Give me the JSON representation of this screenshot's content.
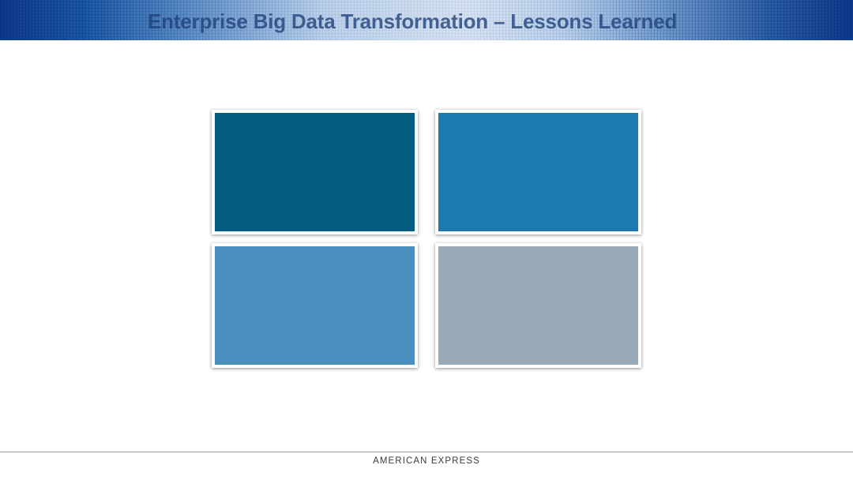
{
  "slide": {
    "title": "Enterprise Big Data Transformation – Lessons Learned"
  },
  "tiles": [
    {
      "color": "#015c80"
    },
    {
      "color": "#1c7aaf"
    },
    {
      "color": "#4a91c0"
    },
    {
      "color": "#98aab8"
    }
  ],
  "footer": {
    "brand": "AMERICAN EXPRESS"
  }
}
